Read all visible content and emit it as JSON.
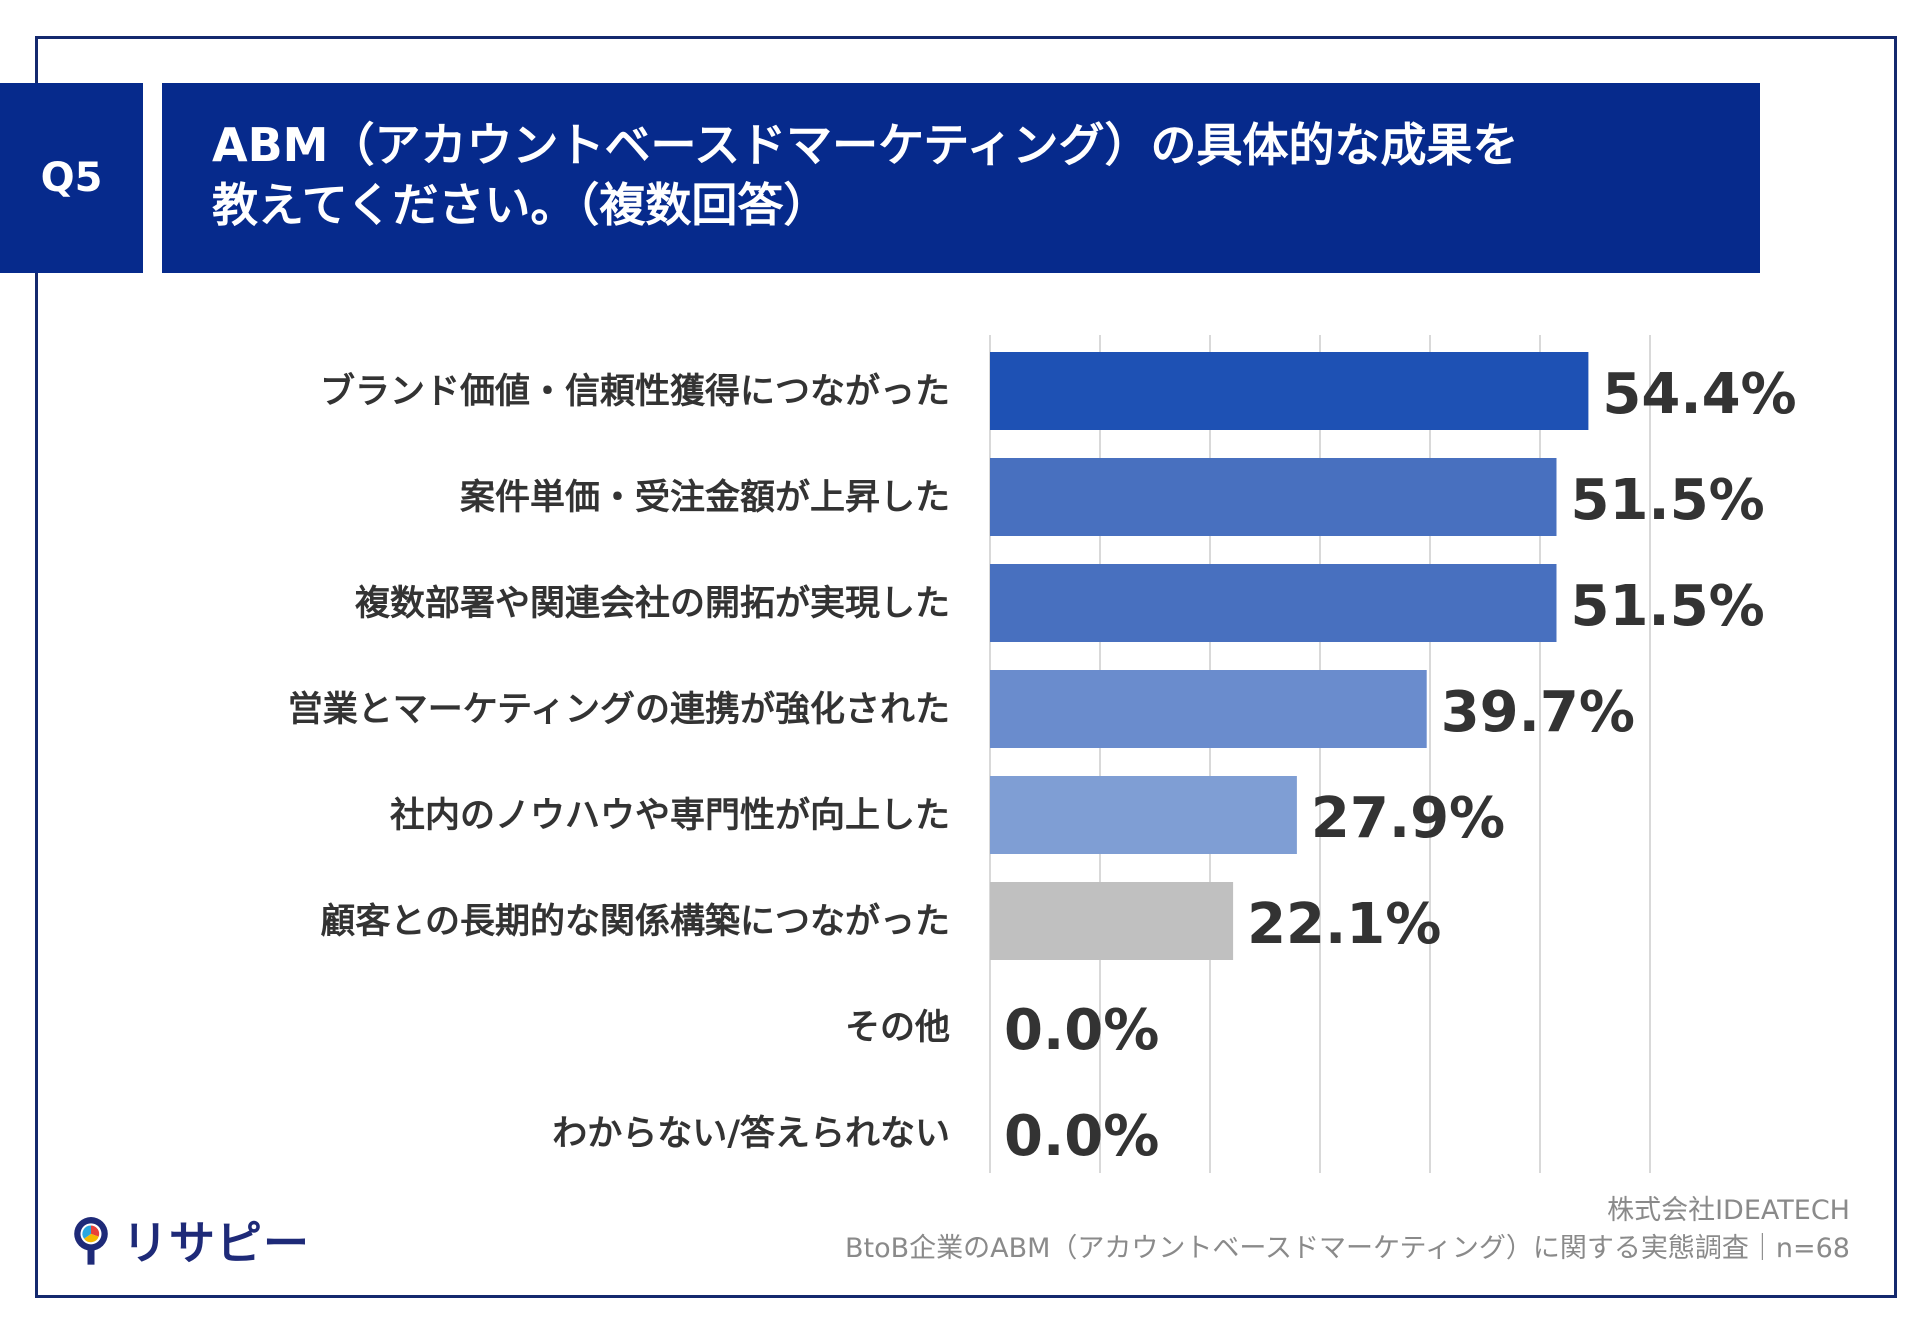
{
  "question": {
    "number": "Q5",
    "title_line1": "ABM（アカウントベースドマーケティング）の具体的な成果を",
    "title_line2": "教えてください。（複数回答）"
  },
  "chart_data": {
    "type": "bar",
    "orientation": "horizontal",
    "categories": [
      "ブランド価値・信頼性獲得につながった",
      "案件単価・受注金額が上昇した",
      "複数部署や関連会社の開拓が実現した",
      "営業とマーケティングの連携が強化された",
      "社内のノウハウや専門性が向上した",
      "顧客との長期的な関係構築につながった",
      "その他",
      "わからない/答えられない"
    ],
    "values": [
      54.4,
      51.5,
      51.5,
      39.7,
      27.9,
      22.1,
      0.0,
      0.0
    ],
    "value_labels": [
      "54.4%",
      "51.5%",
      "51.5%",
      "39.7%",
      "27.9%",
      "22.1%",
      "0.0%",
      "0.0%"
    ],
    "colors": [
      "#1e51b4",
      "#4870bf",
      "#4870bf",
      "#6a8ccd",
      "#7f9ed4",
      "#c0c0c0",
      "#c0c0c0",
      "#c0c0c0"
    ],
    "xlim": [
      0,
      60
    ],
    "grid": true,
    "legend": "none"
  },
  "footer": {
    "logo_text": "リサピー",
    "company": "株式会社IDEATECH",
    "survey": "BtoB企業のABM（アカウントベースドマーケティング）に関する実態調査｜n=68"
  }
}
